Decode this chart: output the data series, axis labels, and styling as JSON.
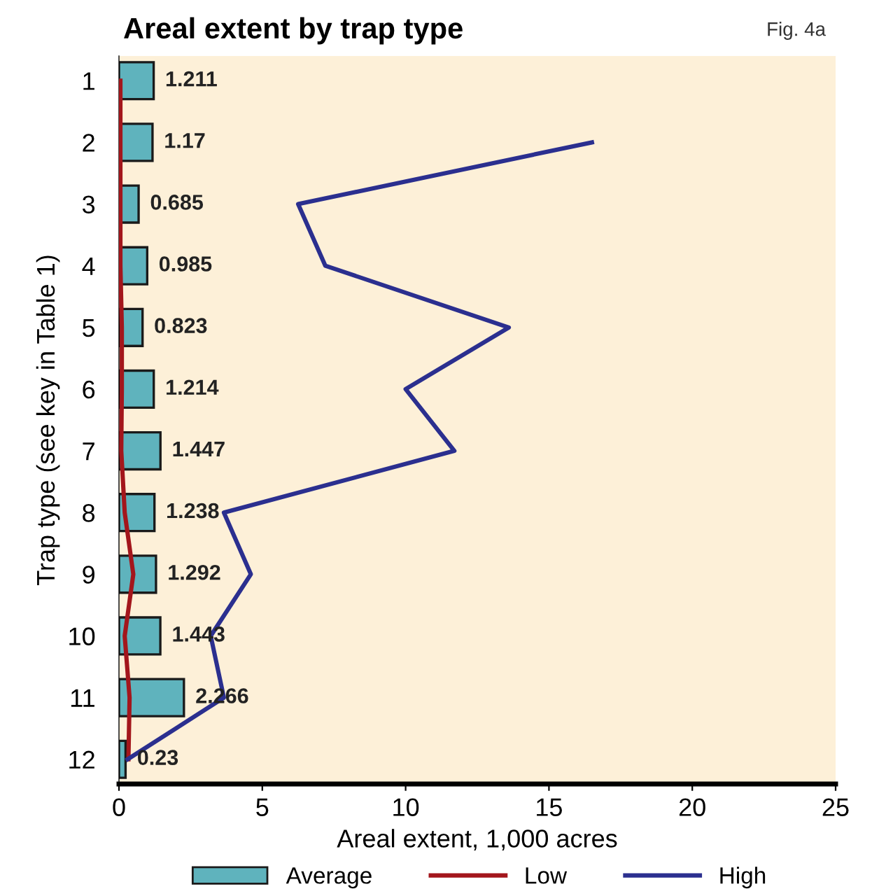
{
  "chart_data": {
    "type": "bar",
    "orientation": "horizontal",
    "title": "Areal extent by trap type",
    "annotations": [
      "Fig. 4a"
    ],
    "xlabel": "Areal extent, 1,000 acres",
    "ylabel": "Trap type (see key in Table 1)",
    "categories": [
      "1",
      "2",
      "3",
      "4",
      "5",
      "6",
      "7",
      "8",
      "9",
      "10",
      "11",
      "12"
    ],
    "series": [
      {
        "name": "Average",
        "color": "#5fb3bd",
        "values": [
          1.211,
          1.17,
          0.685,
          0.985,
          0.823,
          1.214,
          1.447,
          1.238,
          1.292,
          1.443,
          2.266,
          0.23
        ],
        "value_labels": [
          "1.211",
          "1.17",
          "0.685",
          "0.985",
          "0.823",
          "1.214",
          "1.447",
          "1.238",
          "1.292",
          "1.443",
          "2.266",
          "0.23"
        ]
      },
      {
        "name": "Low",
        "type": "line",
        "color": "#a3161c",
        "values": [
          0.05,
          0.05,
          0.05,
          0.05,
          0.1,
          0.1,
          0.08,
          0.2,
          0.5,
          0.2,
          0.37,
          0.33
        ]
      },
      {
        "name": "High",
        "type": "line",
        "color": "#2b2f8f",
        "values": [
          null,
          16.5,
          6.25,
          7.2,
          13.6,
          10.0,
          11.7,
          3.66,
          4.6,
          3.2,
          3.66,
          0.3
        ]
      }
    ],
    "xlim": [
      0,
      25
    ],
    "xticks": [
      0,
      5,
      10,
      15,
      20,
      25
    ],
    "grid": false,
    "legend": "bottom",
    "marker": "none",
    "line_style": "solid"
  }
}
